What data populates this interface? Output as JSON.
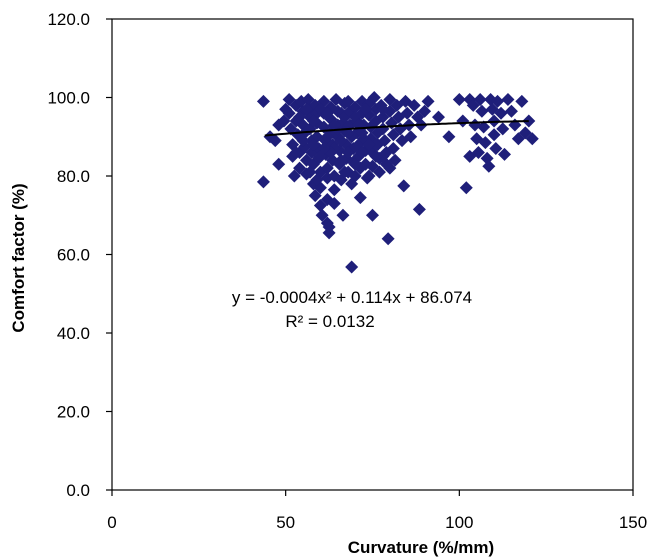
{
  "chart_data": {
    "type": "scatter",
    "xlabel": "Curvature (%/mm)",
    "ylabel": "Comfort factor (%)",
    "xlim": [
      0,
      150
    ],
    "ylim": [
      0,
      120
    ],
    "xticks": [
      "0",
      "50",
      "100",
      "150"
    ],
    "yticks": [
      "0.0",
      "20.0",
      "40.0",
      "60.0",
      "80.0",
      "100.0",
      "120.0"
    ],
    "grid": false,
    "marker_color": "#1f1f7a",
    "trendline_color": "#000000",
    "trendline": {
      "type": "polynomial",
      "coefficients": [
        -0.0004,
        0.114,
        86.074
      ],
      "x_range": [
        44,
        120
      ],
      "equation": "y = -0.0004x² + 0.114x + 86.074",
      "r_squared": "R² = 0.0132"
    },
    "points": [
      [
        43.6,
        99
      ],
      [
        43.6,
        78.5
      ],
      [
        45.5,
        90
      ],
      [
        47,
        89
      ],
      [
        48,
        93
      ],
      [
        48,
        83
      ],
      [
        49.5,
        94
      ],
      [
        50,
        97
      ],
      [
        51,
        99.5
      ],
      [
        51,
        96
      ],
      [
        51.5,
        92
      ],
      [
        52,
        88
      ],
      [
        52,
        85
      ],
      [
        52.5,
        80
      ],
      [
        53,
        98
      ],
      [
        53,
        94
      ],
      [
        53.5,
        90.5
      ],
      [
        54,
        86
      ],
      [
        54,
        82
      ],
      [
        54.5,
        99
      ],
      [
        55,
        96.5
      ],
      [
        55,
        93
      ],
      [
        55.5,
        91
      ],
      [
        55.5,
        87.5
      ],
      [
        56,
        84
      ],
      [
        56,
        80.5
      ],
      [
        56.5,
        99.5
      ],
      [
        57,
        97
      ],
      [
        57,
        95
      ],
      [
        57,
        92
      ],
      [
        57.5,
        89
      ],
      [
        57.5,
        86
      ],
      [
        58,
        83
      ],
      [
        58,
        78
      ],
      [
        58.5,
        75
      ],
      [
        58.5,
        98
      ],
      [
        59,
        96
      ],
      [
        59,
        93.5
      ],
      [
        59,
        90
      ],
      [
        59.5,
        87
      ],
      [
        59.5,
        84.5
      ],
      [
        60,
        81
      ],
      [
        60,
        77
      ],
      [
        60,
        72.5
      ],
      [
        60.5,
        70
      ],
      [
        61,
        99
      ],
      [
        61,
        96
      ],
      [
        61,
        92.5
      ],
      [
        61.5,
        89
      ],
      [
        61.5,
        85.5
      ],
      [
        62,
        82
      ],
      [
        62,
        79.5
      ],
      [
        62,
        74
      ],
      [
        62,
        68
      ],
      [
        62.5,
        67
      ],
      [
        62.5,
        65.5
      ],
      [
        63,
        97.5
      ],
      [
        63,
        94.5
      ],
      [
        63,
        91
      ],
      [
        63.5,
        88
      ],
      [
        63.5,
        84
      ],
      [
        64,
        80
      ],
      [
        64,
        76.5
      ],
      [
        64,
        73
      ],
      [
        64.5,
        99.5
      ],
      [
        65,
        96.5
      ],
      [
        65,
        93
      ],
      [
        65,
        90
      ],
      [
        65.5,
        86.5
      ],
      [
        65.5,
        83
      ],
      [
        66,
        79
      ],
      [
        66,
        96
      ],
      [
        66.5,
        93.5
      ],
      [
        66.5,
        70
      ],
      [
        67,
        98.5
      ],
      [
        67,
        95
      ],
      [
        67,
        91.5
      ],
      [
        67.5,
        88
      ],
      [
        67.5,
        84.5
      ],
      [
        68,
        81
      ],
      [
        68,
        99
      ],
      [
        68.5,
        96.5
      ],
      [
        68.5,
        93
      ],
      [
        69,
        56.8
      ],
      [
        69,
        90
      ],
      [
        69.5,
        87
      ],
      [
        69.5,
        83.5
      ],
      [
        70,
        80
      ],
      [
        70,
        97.5
      ],
      [
        70.5,
        94
      ],
      [
        70.5,
        91
      ],
      [
        71,
        88
      ],
      [
        71,
        85
      ],
      [
        71.5,
        82
      ],
      [
        71.5,
        74.5
      ],
      [
        72,
        99
      ],
      [
        72,
        96
      ],
      [
        72.5,
        93
      ],
      [
        72.5,
        89.5
      ],
      [
        73,
        86.5
      ],
      [
        73,
        83
      ],
      [
        73.5,
        79.5
      ],
      [
        74,
        98.5
      ],
      [
        74,
        95.5
      ],
      [
        74.5,
        92.5
      ],
      [
        74.5,
        89.5
      ],
      [
        75,
        86
      ],
      [
        75,
        82.5
      ],
      [
        75,
        70
      ],
      [
        75.5,
        100
      ],
      [
        76,
        97
      ],
      [
        76,
        94
      ],
      [
        76.5,
        91
      ],
      [
        76.5,
        88
      ],
      [
        77,
        84.5
      ],
      [
        77,
        81
      ],
      [
        77.5,
        98
      ],
      [
        78,
        95
      ],
      [
        78,
        92
      ],
      [
        78.5,
        89
      ],
      [
        79,
        86
      ],
      [
        79,
        83
      ],
      [
        79.5,
        64
      ],
      [
        80,
        99.5
      ],
      [
        80,
        96.5
      ],
      [
        80.5,
        93.5
      ],
      [
        81,
        90.5
      ],
      [
        81,
        87
      ],
      [
        81.5,
        84
      ],
      [
        82,
        98
      ],
      [
        82.5,
        95
      ],
      [
        83,
        92
      ],
      [
        83.5,
        89
      ],
      [
        84,
        77.5
      ],
      [
        84.5,
        99
      ],
      [
        85,
        96
      ],
      [
        85.5,
        93
      ],
      [
        86,
        90
      ],
      [
        87,
        98
      ],
      [
        88,
        95
      ],
      [
        88.5,
        71.5
      ],
      [
        89,
        93
      ],
      [
        90,
        96.5
      ],
      [
        91,
        99
      ],
      [
        94,
        95
      ],
      [
        97,
        90
      ],
      [
        100,
        99.5
      ],
      [
        101,
        94
      ],
      [
        102,
        77
      ],
      [
        103,
        99.5
      ],
      [
        103,
        85
      ],
      [
        104,
        98
      ],
      [
        104.5,
        93
      ],
      [
        105,
        89.5
      ],
      [
        105.5,
        86
      ],
      [
        106,
        99.5
      ],
      [
        106.5,
        96.5
      ],
      [
        107,
        92.5
      ],
      [
        107.5,
        88.5
      ],
      [
        108,
        84.5
      ],
      [
        108.5,
        82.5
      ],
      [
        109,
        99.5
      ],
      [
        109.5,
        97
      ],
      [
        110,
        94
      ],
      [
        110,
        90.5
      ],
      [
        110.5,
        87
      ],
      [
        111,
        99
      ],
      [
        112,
        96
      ],
      [
        112.5,
        92
      ],
      [
        113,
        85.5
      ],
      [
        114,
        99.5
      ],
      [
        115,
        96.5
      ],
      [
        116,
        93
      ],
      [
        117,
        89.5
      ],
      [
        118,
        99
      ],
      [
        119,
        91
      ],
      [
        120,
        94
      ],
      [
        121,
        89.5
      ],
      [
        58,
        94
      ],
      [
        60,
        97
      ],
      [
        62,
        90
      ],
      [
        64,
        87
      ],
      [
        66,
        84
      ],
      [
        68,
        91
      ],
      [
        70,
        95
      ],
      [
        72,
        86
      ],
      [
        74,
        80
      ],
      [
        76,
        88
      ],
      [
        78,
        85
      ],
      [
        80,
        82
      ],
      [
        63,
        86
      ],
      [
        65,
        92
      ],
      [
        67,
        81
      ],
      [
        69,
        78
      ],
      [
        71,
        93
      ],
      [
        73,
        97
      ],
      [
        57,
        81
      ],
      [
        59,
        79
      ],
      [
        61,
        87
      ],
      [
        55,
        89
      ],
      [
        53,
        86
      ],
      [
        54,
        95
      ],
      [
        56,
        97
      ],
      [
        58,
        88
      ],
      [
        60,
        85
      ],
      [
        62,
        96
      ],
      [
        64,
        93
      ],
      [
        66,
        89
      ],
      [
        68,
        86
      ],
      [
        70,
        83
      ],
      [
        72,
        91
      ],
      [
        74,
        88
      ],
      [
        76,
        85
      ],
      [
        78,
        97
      ]
    ]
  }
}
